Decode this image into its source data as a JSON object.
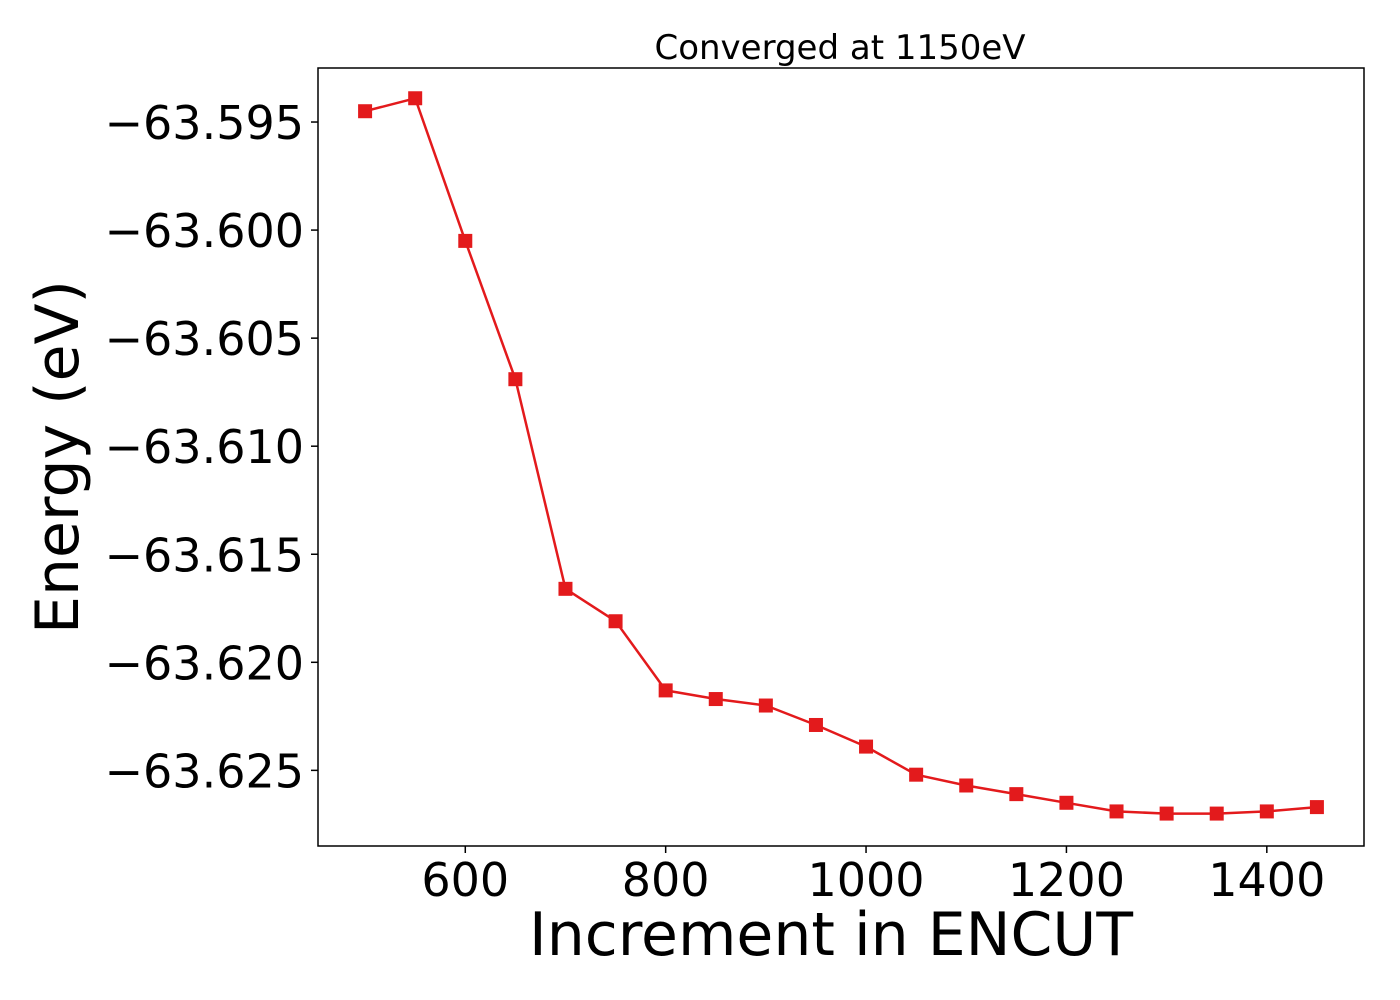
{
  "chart_data": {
    "type": "line",
    "title": "Converged at 1150eV",
    "xlabel": "Increment in ENCUT",
    "ylabel": "Energy (eV)",
    "xlim": [
      453,
      1497
    ],
    "ylim": [
      -63.6285,
      -63.5925
    ],
    "x_ticks": [
      600,
      800,
      1000,
      1200,
      1400
    ],
    "y_ticks": [
      -63.595,
      -63.6,
      -63.605,
      -63.61,
      -63.615,
      -63.62,
      -63.625
    ],
    "y_tick_labels": [
      "−63.595",
      "−63.600",
      "−63.605",
      "−63.610",
      "−63.615",
      "−63.620",
      "−63.625"
    ],
    "grid": false,
    "series": [
      {
        "color": "#e31a1c",
        "marker": "square",
        "x": [
          500,
          550,
          600,
          650,
          700,
          750,
          800,
          850,
          900,
          950,
          1000,
          1050,
          1100,
          1150,
          1200,
          1250,
          1300,
          1350,
          1400,
          1450
        ],
        "y": [
          -63.5945,
          -63.5939,
          -63.6005,
          -63.6069,
          -63.6166,
          -63.6181,
          -63.6213,
          -63.6217,
          -63.622,
          -63.6229,
          -63.6239,
          -63.6252,
          -63.6257,
          -63.6261,
          -63.6265,
          -63.6269,
          -63.627,
          -63.627,
          -63.6269,
          -63.6267
        ]
      }
    ]
  }
}
